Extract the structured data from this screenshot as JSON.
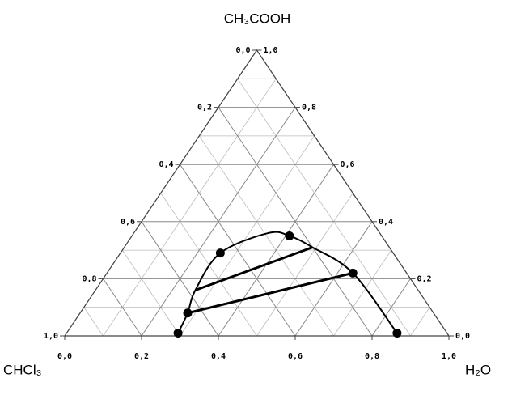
{
  "chart_data": {
    "type": "ternary",
    "top_label": "CH₃COOH",
    "left_label": "CHCl₃",
    "right_label": "H₂O",
    "left_ticks": [
      {
        "value": 0,
        "label": "0,0"
      },
      {
        "value": 0.2,
        "label": "0,2"
      },
      {
        "value": 0.4,
        "label": "0,4"
      },
      {
        "value": 0.6,
        "label": "0,6"
      },
      {
        "value": 0.8,
        "label": "0,8"
      },
      {
        "value": 1,
        "label": "1,0"
      }
    ],
    "right_ticks": [
      {
        "value": 0,
        "label": "0,0"
      },
      {
        "value": 0.2,
        "label": "0,2"
      },
      {
        "value": 0.4,
        "label": "0,4"
      },
      {
        "value": 0.6,
        "label": "0,6"
      },
      {
        "value": 0.8,
        "label": "0,8"
      },
      {
        "value": 1,
        "label": "1,0"
      }
    ],
    "bottom_ticks": [
      {
        "value": 0,
        "label": "0,0"
      },
      {
        "value": 0.2,
        "label": "0,2"
      },
      {
        "value": 0.4,
        "label": "0,4"
      },
      {
        "value": 0.6,
        "label": "0,6"
      },
      {
        "value": 0.8,
        "label": "0,8"
      },
      {
        "value": 1,
        "label": "1,0"
      }
    ],
    "minor_ticks": [
      0.1,
      0.3,
      0.5,
      0.7,
      0.9
    ],
    "grid": true,
    "color": "#000000",
    "binodal": {
      "h2o": [
        0.29,
        0.28,
        0.26,
        0.26,
        0.35,
        0.41,
        0.49,
        0.64,
        0.86
      ],
      "ch3cooh": [
        0.01,
        0.08,
        0.16,
        0.29,
        0.36,
        0.35,
        0.31,
        0.22,
        0.01
      ]
    },
    "points": {
      "h2o": [
        0.29,
        0.28,
        0.26,
        0.41,
        0.64,
        0.86
      ],
      "ch3cooh": [
        0.01,
        0.08,
        0.29,
        0.35,
        0.22,
        0.01
      ]
    },
    "tie_lines": [
      {
        "h2o": [
          0.28,
          0.64
        ],
        "ch3cooh": [
          0.08,
          0.22
        ]
      },
      {
        "h2o": [
          0.26,
          0.49
        ],
        "ch3cooh": [
          0.16,
          0.31
        ]
      }
    ]
  }
}
